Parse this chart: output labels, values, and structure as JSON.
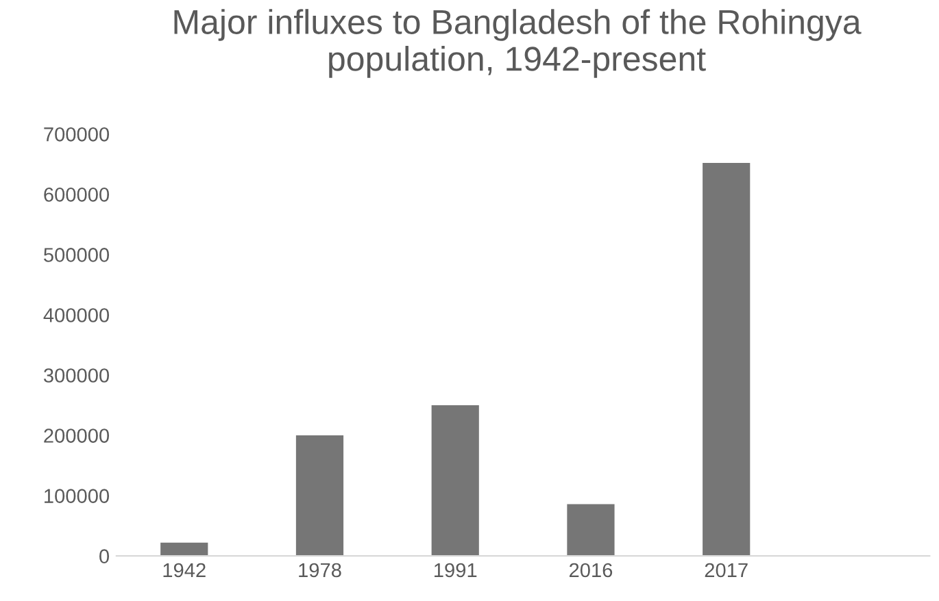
{
  "chart_data": {
    "type": "bar",
    "title": "Major influxes to Bangladesh of the Rohingya population, 1942-present",
    "categories": [
      "1942",
      "1978",
      "1991",
      "2016",
      "2017",
      null
    ],
    "values": [
      22000,
      200000,
      250000,
      86000,
      652000,
      null
    ],
    "color": "#767676",
    "ylim": [
      0,
      700000
    ],
    "yticks": [
      0,
      100000,
      200000,
      300000,
      400000,
      500000,
      600000,
      700000
    ],
    "grid": false,
    "legend": false
  }
}
